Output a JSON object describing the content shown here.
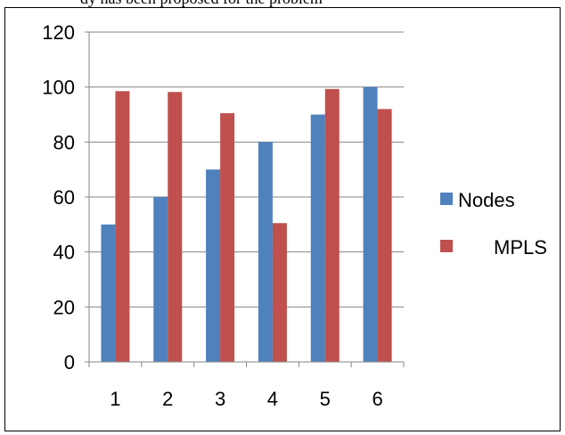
{
  "top_text": "dy has been proposed for the problem",
  "colors": {
    "nodes": "#4F81BD",
    "mpls": "#C0504D",
    "axis": "#868686",
    "grid": "#868686"
  },
  "chart_data": {
    "type": "bar",
    "categories": [
      "1",
      "2",
      "3",
      "4",
      "5",
      "6"
    ],
    "series": [
      {
        "name": "Nodes",
        "values": [
          50,
          60,
          70,
          80,
          90,
          100
        ]
      },
      {
        "name": "MPLS",
        "values": [
          98.5,
          98.2,
          90.5,
          50.5,
          99.3,
          92
        ]
      }
    ],
    "ylim": [
      0,
      120
    ],
    "yticks": [
      0,
      20,
      40,
      60,
      80,
      100,
      120
    ],
    "ytick_labels": [
      "0",
      "20",
      "40",
      "60",
      "80",
      "100",
      "120"
    ],
    "grid": true,
    "legend_position": "right",
    "title": "",
    "xlabel": "",
    "ylabel": ""
  }
}
